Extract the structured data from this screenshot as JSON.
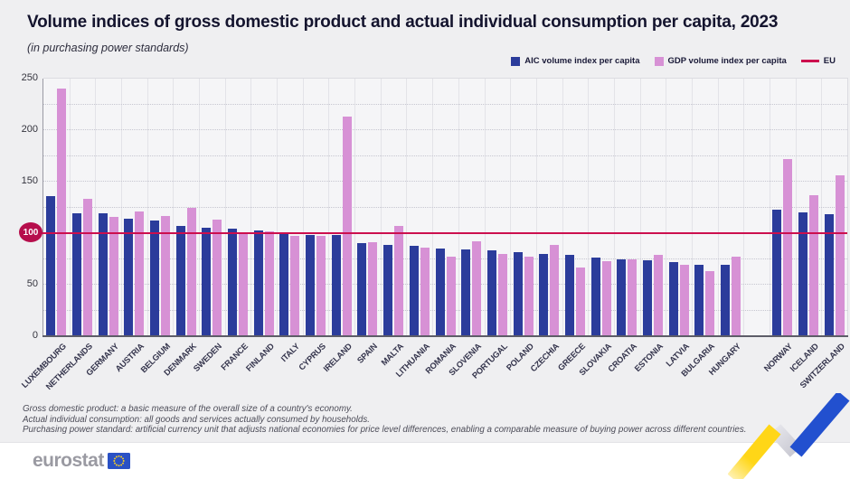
{
  "header": {
    "title": "Volume indices of gross domestic product and actual individual consumption per capita, 2023",
    "subtitle": "(in purchasing power standards)"
  },
  "legend": {
    "aic_label": "AIC volume index per capita",
    "gdp_label": "GDP volume index per capita",
    "eu_label": "EU"
  },
  "colors": {
    "aic_bar": "#2b3c9b",
    "gdp_bar": "#d791d5",
    "eu_line": "#cc0f4e",
    "eu_badge": "#b60e4c",
    "flag_blue": "#2a51c5",
    "flag_stars": "#ffd21e",
    "deco_yellow": "#ffd617",
    "deco_gray": "#d4d4db",
    "deco_blue": "#2250cf"
  },
  "chart_data": {
    "type": "bar",
    "title": "Volume indices of gross domestic product and actual individual consumption per capita, 2023",
    "subtitle": "(in purchasing power standards)",
    "ylim": [
      0,
      250
    ],
    "yticks": [
      0,
      50,
      100,
      150,
      200,
      250
    ],
    "eu_reference": 100,
    "grid": "horizontal-dotted-25, vertical-column-separators",
    "legend_position": "top-right",
    "gap_after_index": 26,
    "categories": [
      "LUXEMBOURG",
      "NETHERLANDS",
      "GERMANY",
      "AUSTRIA",
      "BELGIUM",
      "DENMARK",
      "SWEDEN",
      "FRANCE",
      "FINLAND",
      "ITALY",
      "CYPRUS",
      "IRELAND",
      "SPAIN",
      "MALTA",
      "LITHUANIA",
      "ROMANIA",
      "SLOVENIA",
      "PORTUGAL",
      "POLAND",
      "CZECHIA",
      "GREECE",
      "SLOVAKIA",
      "CROATIA",
      "ESTONIA",
      "LATVIA",
      "BULGARIA",
      "HUNGARY",
      "NORWAY",
      "ICELAND",
      "SWITZERLAND"
    ],
    "series": [
      {
        "name": "AIC volume index per capita",
        "values": [
          136,
          119,
          119,
          114,
          112,
          107,
          105,
          104,
          103,
          99,
          98,
          98,
          90,
          89,
          88,
          85,
          84,
          83,
          82,
          80,
          79,
          76,
          75,
          74,
          72,
          69,
          69,
          123,
          120,
          118
        ]
      },
      {
        "name": "GDP volume index per capita",
        "values": [
          240,
          133,
          116,
          121,
          117,
          125,
          113,
          99,
          102,
          97,
          97,
          213,
          91,
          107,
          86,
          77,
          92,
          80,
          77,
          89,
          67,
          73,
          75,
          79,
          69,
          63,
          77,
          172,
          137,
          156
        ]
      }
    ]
  },
  "footnotes": [
    "Gross domestic product: a basic measure of the overall size of a country's economy.",
    "Actual individual consumption: all goods and services actually consumed by households.",
    "Purchasing power standard: artificial currency unit that adjusts national economies for price level differences, enabling a comparable measure of buying power across different countries."
  ],
  "footer": {
    "logo_text": "eurostat"
  }
}
